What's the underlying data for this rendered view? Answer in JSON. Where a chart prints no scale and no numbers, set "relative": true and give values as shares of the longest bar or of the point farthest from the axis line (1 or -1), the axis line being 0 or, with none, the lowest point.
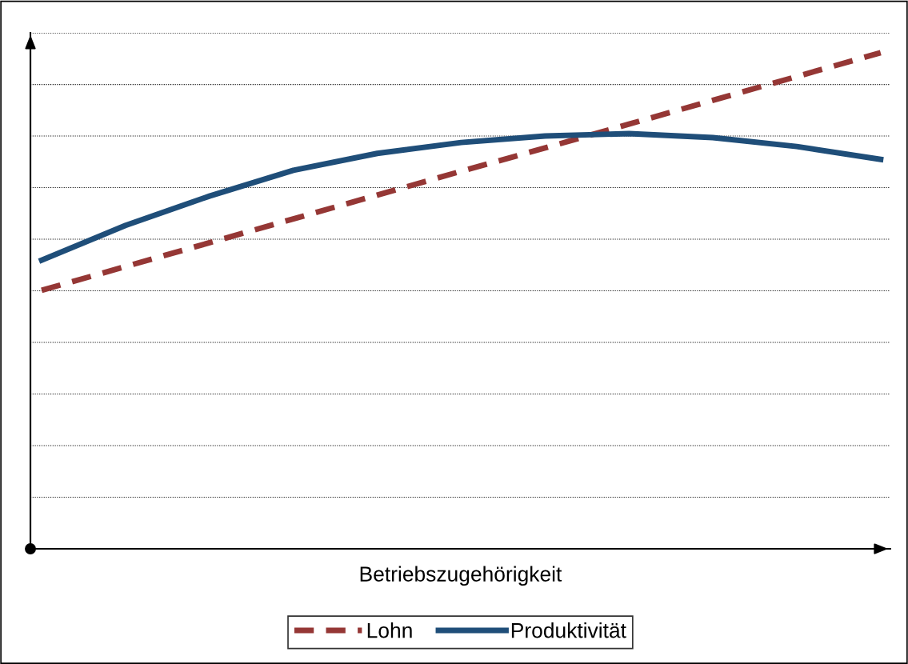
{
  "chart_data": {
    "type": "line",
    "relative": true,
    "xlabel": "Betriebszugehörigkeit",
    "categories": [
      null,
      null,
      null,
      null,
      null,
      null,
      null,
      null,
      null,
      null,
      null
    ],
    "series": [
      {
        "name": "Lohn",
        "color": "#953735",
        "line_style": "dashed",
        "values": [
          0.521,
          0.569,
          0.617,
          0.665,
          0.713,
          0.761,
          0.808,
          0.856,
          0.904,
          0.952,
          1.0
        ]
      },
      {
        "name": "Produktivität",
        "color": "#1f4e79",
        "line_style": "solid",
        "values": [
          0.582,
          0.652,
          0.711,
          0.763,
          0.797,
          0.819,
          0.832,
          0.837,
          0.829,
          0.811,
          0.785
        ]
      }
    ],
    "grid": "y",
    "legend": "bottom",
    "marker": "none"
  }
}
